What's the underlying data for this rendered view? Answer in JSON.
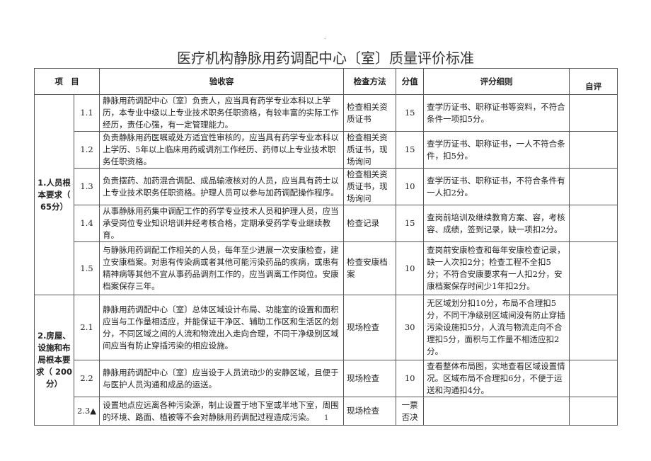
{
  "page_dot": ".",
  "title": "医疗机构静脉用药调配中心〔室〕质量评价标准",
  "headers": {
    "item": "项　目",
    "content": "验收容",
    "method": "检查方法",
    "score": "分值",
    "detail": "评分细则",
    "self": "自评"
  },
  "groups": [
    {
      "label": "1.人员根本要求（ 65分）",
      "rows": [
        {
          "no": "1.1",
          "content": "静脉用药调配中心〔室〕负责人，应当具有药学专业本科以上学历，本专业中级以上专业技术职务任职资格，有较丰富的实际工作经历，责任心强，有一定管理能力。",
          "method": "检查相关资质证书",
          "score": "15",
          "detail": "查学历证书、职称证书等资料，不符合条件一项扣5分。"
        },
        {
          "no": "1.2",
          "content": "负责静脉用药医嘱或处方适宜性审核的，应当具有药学专业本科以上学历、5年以上临床用药或调剂工作经历、药师以上专业技术职务任职资格。",
          "method": "检查相关资质证书，现场询问",
          "score": "15",
          "detail": "查学历证书、职称证书，一人不符合条件，扣5分。"
        },
        {
          "no": "1.3",
          "content": "负责摆药、加药混合调配、成品输液核对的人员，应当具有药士以上专业技术职务任职资格。护理人员可以参与加药调配操作程序。",
          "method": "检查相关资质证书，现场询问",
          "score": "10",
          "detail": "查学历证书、职称证书，不符合条件有一人扣2分。"
        },
        {
          "no": "1.4",
          "content": "从事静脉用药集中调配工作的药学专业技术人员和护理人员，应当承受岗位专业知识培训并经考核合格，定期承受药学专业继续教育。",
          "method": "检查记录",
          "score": "15",
          "detail": "查岗前培训及继续教育方案、容，考核容、成绩，签到记录，缺一项扣2分。"
        },
        {
          "no": "1.5",
          "content": "与静脉用药调配工作相关的人员，每年至少进展一次安康检查，建立安康档案。对患有传染病或者其他可能污染药品的疾病，或患有精神病等其他不宜从事药品调剂工作的，应当调离工作岗位。安康档案保存三年。",
          "method": "检查安康档案",
          "score": "10",
          "detail": "查岗前安康检查和每年安康检查记录，缺一人次扣2分；检查工程不全扣5分；不符合安康要求有一人扣2分，安康档案保存时间少1年扣2分。"
        }
      ]
    },
    {
      "label": "2.房屋、设施和布局根本要求（ 200分）",
      "rows": [
        {
          "no": "2.1",
          "content": "静脉用药调配中心〔室〕总体区域设计布局、功能室的设置和面积应当与工作量相适应，并能保证干净区、辅助工作区和生活区的划分，不同区域之间的人流和物流出入走向合理，不同干净级别区域间应当有防止穿插污染的相应设施。",
          "method": "现场检查",
          "score": "30",
          "detail": "无区域划分扣10分，布局不合理扣5分，不同干净级别区域间没有防止穿插污染设施扣5分，人流与物流走向不合理扣5分，面积与工作量不相适应扣2分。"
        },
        {
          "no": "2.2",
          "content": "静脉用药调配中心〔室〕应当设于人员流动少的安静区域，且便于与医护人员沟通和成品的运送。",
          "method": "现场检查",
          "score": "10",
          "detail": "查看整体布局图，实地查看区域设置情况。区域布局不合理扣6分，不便于运送和沟通扣4分。"
        },
        {
          "no": "2.3▲",
          "content": "设置地点应远离各种污染源，制止设置于地下室或半地下室，周围的环境、路面、植被等不会对静脉用药调配过程造成污染。",
          "method": "现场检查",
          "score": "一票否决",
          "detail": ""
        }
      ]
    }
  ],
  "page_number": "1"
}
